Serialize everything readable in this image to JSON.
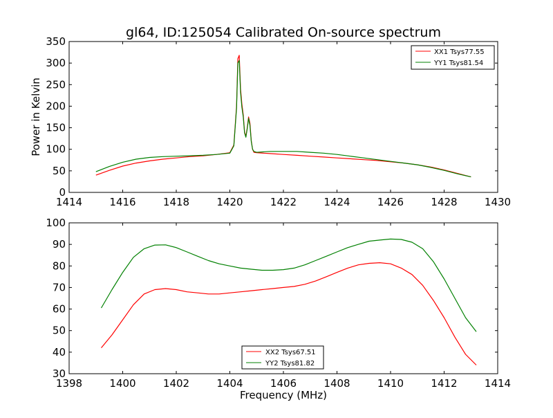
{
  "chart_data": [
    {
      "type": "line",
      "title": "gl64, ID:125054 Calibrated On-source spectrum",
      "xlabel": "",
      "ylabel": "Power in Kelvin",
      "xlim": [
        1414,
        1430
      ],
      "ylim": [
        0,
        350
      ],
      "x_ticks": [
        1414,
        1416,
        1418,
        1420,
        1422,
        1424,
        1426,
        1428,
        1430
      ],
      "y_ticks": [
        0,
        50,
        100,
        150,
        200,
        250,
        300,
        350
      ],
      "legend_position": "top-right",
      "grid": false,
      "series": [
        {
          "name": "XX1 Tsys77.55",
          "color": "#ff0000",
          "x": [
            1415.0,
            1415.5,
            1416.0,
            1416.5,
            1417.0,
            1417.5,
            1418.0,
            1418.5,
            1419.0,
            1419.5,
            1420.0,
            1420.15,
            1420.25,
            1420.3,
            1420.35,
            1420.4,
            1420.45,
            1420.5,
            1420.55,
            1420.6,
            1420.65,
            1420.7,
            1420.75,
            1420.8,
            1420.85,
            1420.9,
            1421.0,
            1421.5,
            1422.0,
            1422.5,
            1423.0,
            1423.5,
            1424.0,
            1424.5,
            1425.0,
            1425.5,
            1426.0,
            1426.5,
            1427.0,
            1427.5,
            1428.0,
            1428.5,
            1429.0
          ],
          "y": [
            40,
            51,
            61,
            68,
            73,
            77,
            80,
            83,
            85,
            88,
            92,
            110,
            200,
            310,
            318,
            240,
            205,
            180,
            140,
            130,
            150,
            175,
            160,
            120,
            100,
            93,
            92,
            90,
            88,
            86,
            84,
            82,
            80,
            78,
            76,
            74,
            71,
            68,
            64,
            59,
            52,
            44,
            36
          ]
        },
        {
          "name": "YY1 Tsys81.54",
          "color": "#008000",
          "x": [
            1415.0,
            1415.5,
            1416.0,
            1416.5,
            1417.0,
            1417.5,
            1418.0,
            1418.5,
            1419.0,
            1419.5,
            1420.0,
            1420.15,
            1420.25,
            1420.3,
            1420.35,
            1420.4,
            1420.45,
            1420.5,
            1420.55,
            1420.6,
            1420.65,
            1420.7,
            1420.75,
            1420.8,
            1420.85,
            1420.9,
            1421.0,
            1421.5,
            1422.0,
            1422.5,
            1423.0,
            1423.5,
            1424.0,
            1424.5,
            1425.0,
            1425.5,
            1426.0,
            1426.5,
            1427.0,
            1427.5,
            1428.0,
            1428.5,
            1429.0
          ],
          "y": [
            48,
            60,
            70,
            77,
            81,
            83,
            84,
            85,
            86,
            88,
            91,
            108,
            195,
            300,
            306,
            232,
            198,
            175,
            138,
            128,
            148,
            172,
            155,
            118,
            100,
            95,
            93,
            95,
            95,
            95,
            93,
            91,
            88,
            84,
            80,
            76,
            72,
            68,
            64,
            58,
            51,
            43,
            36
          ]
        }
      ]
    },
    {
      "type": "line",
      "title": "",
      "xlabel": "Frequency (MHz)",
      "ylabel": "",
      "xlim": [
        1398,
        1414
      ],
      "ylim": [
        30,
        100
      ],
      "x_ticks": [
        1398,
        1400,
        1402,
        1404,
        1406,
        1408,
        1410,
        1412,
        1414
      ],
      "y_ticks": [
        30,
        40,
        50,
        60,
        70,
        80,
        90,
        100
      ],
      "legend_position": "lower-center",
      "grid": false,
      "series": [
        {
          "name": "XX2 Tsys67.51",
          "color": "#ff0000",
          "x": [
            1399.2,
            1399.6,
            1400.0,
            1400.4,
            1400.8,
            1401.2,
            1401.6,
            1402.0,
            1402.4,
            1402.8,
            1403.2,
            1403.6,
            1404.0,
            1404.4,
            1404.8,
            1405.2,
            1405.6,
            1406.0,
            1406.4,
            1406.8,
            1407.2,
            1407.6,
            1408.0,
            1408.4,
            1408.8,
            1409.2,
            1409.6,
            1410.0,
            1410.4,
            1410.8,
            1411.2,
            1411.6,
            1412.0,
            1412.4,
            1412.8,
            1413.2
          ],
          "y": [
            42,
            48,
            55,
            62,
            67,
            69,
            69.5,
            69,
            68,
            67.5,
            67,
            67,
            67.5,
            68,
            68.5,
            69,
            69.5,
            70,
            70.5,
            71.5,
            73,
            75,
            77,
            79,
            80.5,
            81.2,
            81.5,
            81,
            79,
            76,
            71,
            64,
            56,
            47,
            39,
            34
          ]
        },
        {
          "name": "YY2 Tsys81.82",
          "color": "#008000",
          "x": [
            1399.2,
            1399.6,
            1400.0,
            1400.4,
            1400.8,
            1401.2,
            1401.6,
            1402.0,
            1402.4,
            1402.8,
            1403.2,
            1403.6,
            1404.0,
            1404.4,
            1404.8,
            1405.2,
            1405.6,
            1406.0,
            1406.4,
            1406.8,
            1407.2,
            1407.6,
            1408.0,
            1408.4,
            1408.8,
            1409.2,
            1409.6,
            1410.0,
            1410.4,
            1410.8,
            1411.2,
            1411.6,
            1412.0,
            1412.4,
            1412.8,
            1413.2
          ],
          "y": [
            60.5,
            69,
            77,
            84,
            88,
            89.7,
            89.8,
            88.5,
            86.5,
            84.5,
            82.5,
            81,
            80,
            79,
            78.5,
            78,
            78,
            78.3,
            79,
            80.5,
            82.5,
            84.5,
            86.5,
            88.5,
            90,
            91.5,
            92,
            92.5,
            92.3,
            91,
            88,
            82,
            74,
            65,
            56,
            49.5
          ]
        }
      ]
    }
  ]
}
